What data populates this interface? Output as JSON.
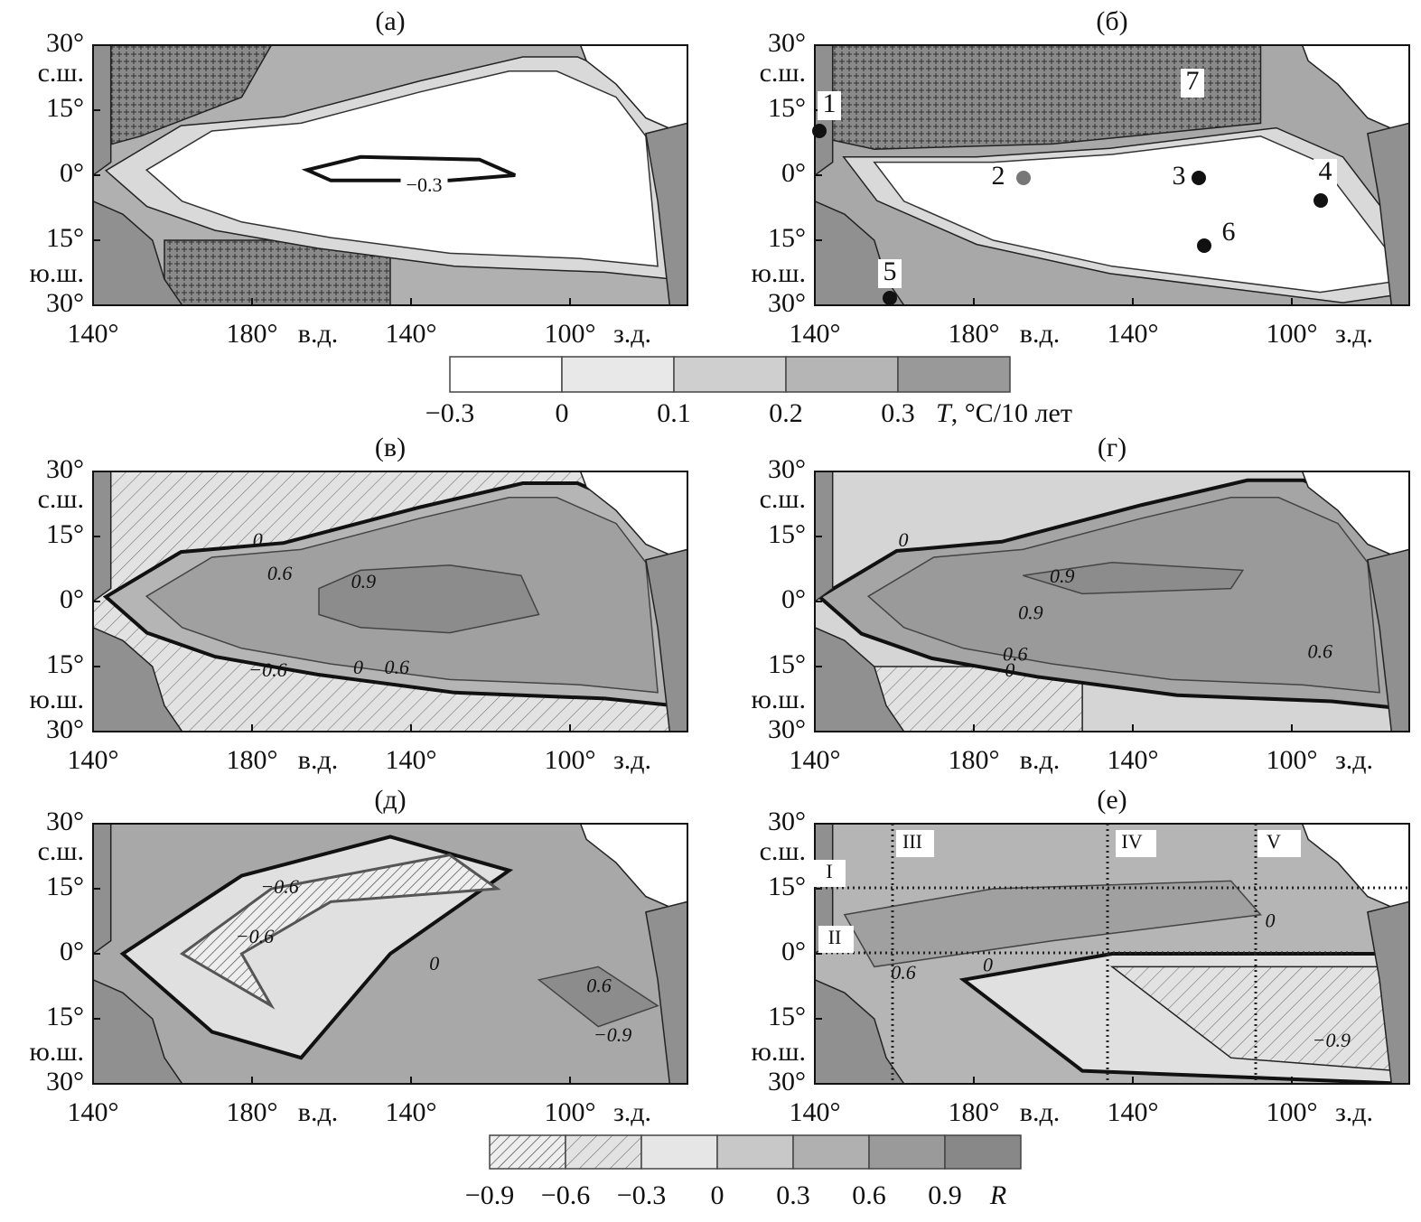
{
  "panels": [
    {
      "label": "(а)",
      "contour_labels": [
        "−0.3"
      ]
    },
    {
      "label": "(б)",
      "point_labels": [
        "1",
        "2",
        "3",
        "4",
        "5",
        "6",
        "7"
      ]
    },
    {
      "label": "(в)",
      "contour_labels": [
        "0",
        "0.6",
        "0.9",
        "−0.6",
        "0",
        "0.6"
      ]
    },
    {
      "label": "(г)",
      "contour_labels": [
        "0",
        "0.9",
        "0.9",
        "0.6",
        "0",
        "0.6"
      ]
    },
    {
      "label": "(д)",
      "contour_labels": [
        "−0.6",
        "−0.6",
        "0",
        "0.6",
        "−0.9"
      ]
    },
    {
      "label": "(е)",
      "contour_labels": [
        "0",
        "0",
        "0.6",
        "−0.9"
      ],
      "region_labels": [
        "I",
        "II",
        "III",
        "IV",
        "V"
      ]
    }
  ],
  "axes": {
    "y_labels": [
      "30°",
      "15°",
      "0°",
      "15°",
      "30°"
    ],
    "north": "с.ш.",
    "south": "ю.ш.",
    "x_labels": [
      "140°",
      "180°",
      "140°",
      "100°"
    ],
    "east": "в.д.",
    "west": "з.д."
  },
  "temperature_scale": {
    "ticks": [
      "−0.3",
      "0",
      "0.1",
      "0.2",
      "0.3"
    ],
    "unit_symbol": "T",
    "unit": ", °C/10 лет"
  },
  "correlation_scale": {
    "ticks": [
      "−0.9",
      "−0.6",
      "−0.3",
      "0",
      "0.3",
      "0.6",
      "0.9"
    ],
    "unit": "R"
  }
}
